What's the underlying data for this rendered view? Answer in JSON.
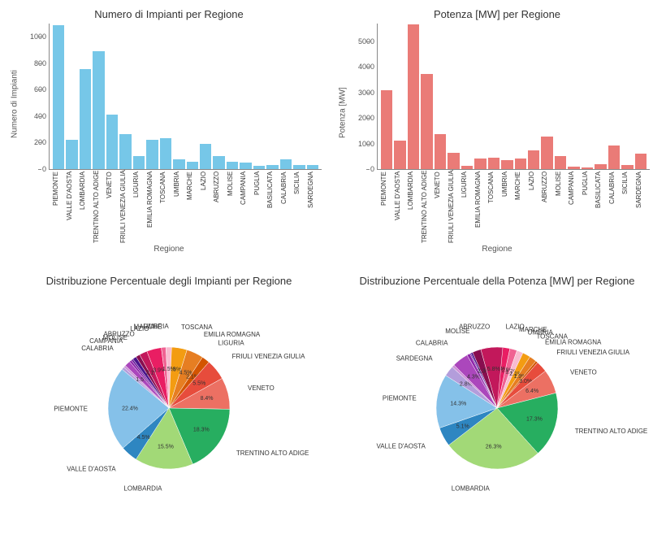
{
  "regions": [
    "PIEMONTE",
    "VALLE D'AOSTA",
    "LOMBARDIA",
    "TRENTINO ALTO ADIGE",
    "VENETO",
    "FRIULI VENEZIA GIULIA",
    "LIGURIA",
    "EMILIA ROMAGNA",
    "TOSCANA",
    "UMBRIA",
    "MARCHE",
    "LAZIO",
    "ABRUZZO",
    "MOLISE",
    "CAMPANIA",
    "PUGLIA",
    "BASILICATA",
    "CALABRIA",
    "SICILIA",
    "SARDEGNA"
  ],
  "impianti": {
    "title": "Numero di Impianti per Regione",
    "ylabel": "Numero di Impianti",
    "xlabel": "Regione",
    "values": [
      1090,
      220,
      755,
      890,
      410,
      265,
      100,
      220,
      235,
      75,
      57,
      190,
      100,
      55,
      50,
      24,
      28,
      75,
      30,
      32
    ],
    "ylim": [
      0,
      1100
    ],
    "yticks": [
      0,
      200,
      400,
      600,
      800,
      1000
    ],
    "bar_color": "#76c7e8",
    "background": "#ffffff"
  },
  "potenza": {
    "title": "Potenza [MW] per Regione",
    "ylabel": "Potenza [MW]",
    "xlabel": "Regione",
    "values": [
      3080,
      1100,
      5680,
      3740,
      1380,
      640,
      130,
      420,
      450,
      360,
      400,
      730,
      1260,
      500,
      100,
      60,
      180,
      930,
      160,
      600
    ],
    "ylim": [
      0,
      5700
    ],
    "yticks": [
      0,
      1000,
      2000,
      3000,
      4000,
      5000
    ],
    "bar_color": "#ea7b77",
    "background": "#ffffff"
  },
  "pie_impianti": {
    "title": "Distribuzione Percentuale degli Impianti per Regione",
    "start_angle": 90,
    "slices": [
      {
        "label": "TOSCANA",
        "pct": 4.8,
        "color": "#f39c12"
      },
      {
        "label": "EMILIA ROMAGNA",
        "pct": 4.5,
        "color": "#e67e22"
      },
      {
        "label": "LIGURIA",
        "pct": 2.1,
        "color": "#d35400"
      },
      {
        "label": "FRIULI VENEZIA GIULIA",
        "pct": 5.5,
        "color": "#e74c3c"
      },
      {
        "label": "VENETO",
        "pct": 8.4,
        "color": "#ec7063"
      },
      {
        "label": "TRENTINO ALTO ADIGE",
        "pct": 18.3,
        "color": "#27ae60"
      },
      {
        "label": "LOMBARDIA",
        "pct": 15.5,
        "color": "#a2d977"
      },
      {
        "label": "VALLE D'AOSTA",
        "pct": 4.5,
        "color": "#2e86c1"
      },
      {
        "label": "PIEMONTE",
        "pct": 22.4,
        "color": "#85c1e9"
      },
      {
        "label": "SARDEGNA",
        "pct": 0.7,
        "color": "#b39ddb"
      },
      {
        "label": "SICILIA",
        "pct": 0.6,
        "color": "#ce93d8"
      },
      {
        "label": "CALABRIA",
        "pct": 1.5,
        "color": "#ab47bc"
      },
      {
        "label": "BASILICATA",
        "pct": 0.6,
        "color": "#8e24aa"
      },
      {
        "label": "PUGLIA",
        "pct": 0.5,
        "color": "#6a1b9a"
      },
      {
        "label": "CAMPANIA",
        "pct": 1.0,
        "color": "#4a148c"
      },
      {
        "label": "MOLISE",
        "pct": 1.1,
        "color": "#880e4f"
      },
      {
        "label": "ABRUZZO",
        "pct": 2.1,
        "color": "#c2185b"
      },
      {
        "label": "LAZIO",
        "pct": 3.9,
        "color": "#e91e63"
      },
      {
        "label": "MARCHE",
        "pct": 1.2,
        "color": "#f06292"
      },
      {
        "label": "UMBRIA",
        "pct": 1.5,
        "color": "#f8bbd0"
      }
    ]
  },
  "pie_potenza": {
    "title": "Distribuzione Percentuale della Potenza [MW] per Regione",
    "start_angle": 90,
    "slices": [
      {
        "label": "LAZIO",
        "pct": 3.4,
        "color": "#e91e63"
      },
      {
        "label": "MARCHE",
        "pct": 1.9,
        "color": "#f06292"
      },
      {
        "label": "UMBRIA",
        "pct": 1.7,
        "color": "#f8bbd0"
      },
      {
        "label": "TOSCANA",
        "pct": 2.1,
        "color": "#f39c12"
      },
      {
        "label": "EMILIA ROMAGNA",
        "pct": 1.9,
        "color": "#e67e22"
      },
      {
        "label": "LIGURIA",
        "pct": 0.6,
        "color": "#d35400"
      },
      {
        "label": "FRIULI VENEZIA GIULIA",
        "pct": 3.0,
        "color": "#e74c3c"
      },
      {
        "label": "VENETO",
        "pct": 6.4,
        "color": "#ec7063"
      },
      {
        "label": "TRENTINO ALTO ADIGE",
        "pct": 17.3,
        "color": "#27ae60"
      },
      {
        "label": "LOMBARDIA",
        "pct": 26.3,
        "color": "#a2d977"
      },
      {
        "label": "VALLE D'AOSTA",
        "pct": 5.1,
        "color": "#2e86c1"
      },
      {
        "label": "PIEMONTE",
        "pct": 14.3,
        "color": "#85c1e9"
      },
      {
        "label": "SARDEGNA",
        "pct": 2.8,
        "color": "#b39ddb"
      },
      {
        "label": "SICILIA",
        "pct": 0.7,
        "color": "#ce93d8"
      },
      {
        "label": "CALABRIA",
        "pct": 4.3,
        "color": "#ab47bc"
      },
      {
        "label": "BASILICATA",
        "pct": 0.8,
        "color": "#8e24aa"
      },
      {
        "label": "PUGLIA",
        "pct": 0.3,
        "color": "#6a1b9a"
      },
      {
        "label": "CAMPANIA",
        "pct": 0.5,
        "color": "#4a148c"
      },
      {
        "label": "MOLISE",
        "pct": 2.3,
        "color": "#880e4f"
      },
      {
        "label": "ABRUZZO",
        "pct": 5.8,
        "color": "#c2185b"
      }
    ]
  },
  "typography": {
    "title_fontsize": 13,
    "axis_label_fontsize": 10,
    "tick_fontsize": 9,
    "pie_label_fontsize": 8
  }
}
